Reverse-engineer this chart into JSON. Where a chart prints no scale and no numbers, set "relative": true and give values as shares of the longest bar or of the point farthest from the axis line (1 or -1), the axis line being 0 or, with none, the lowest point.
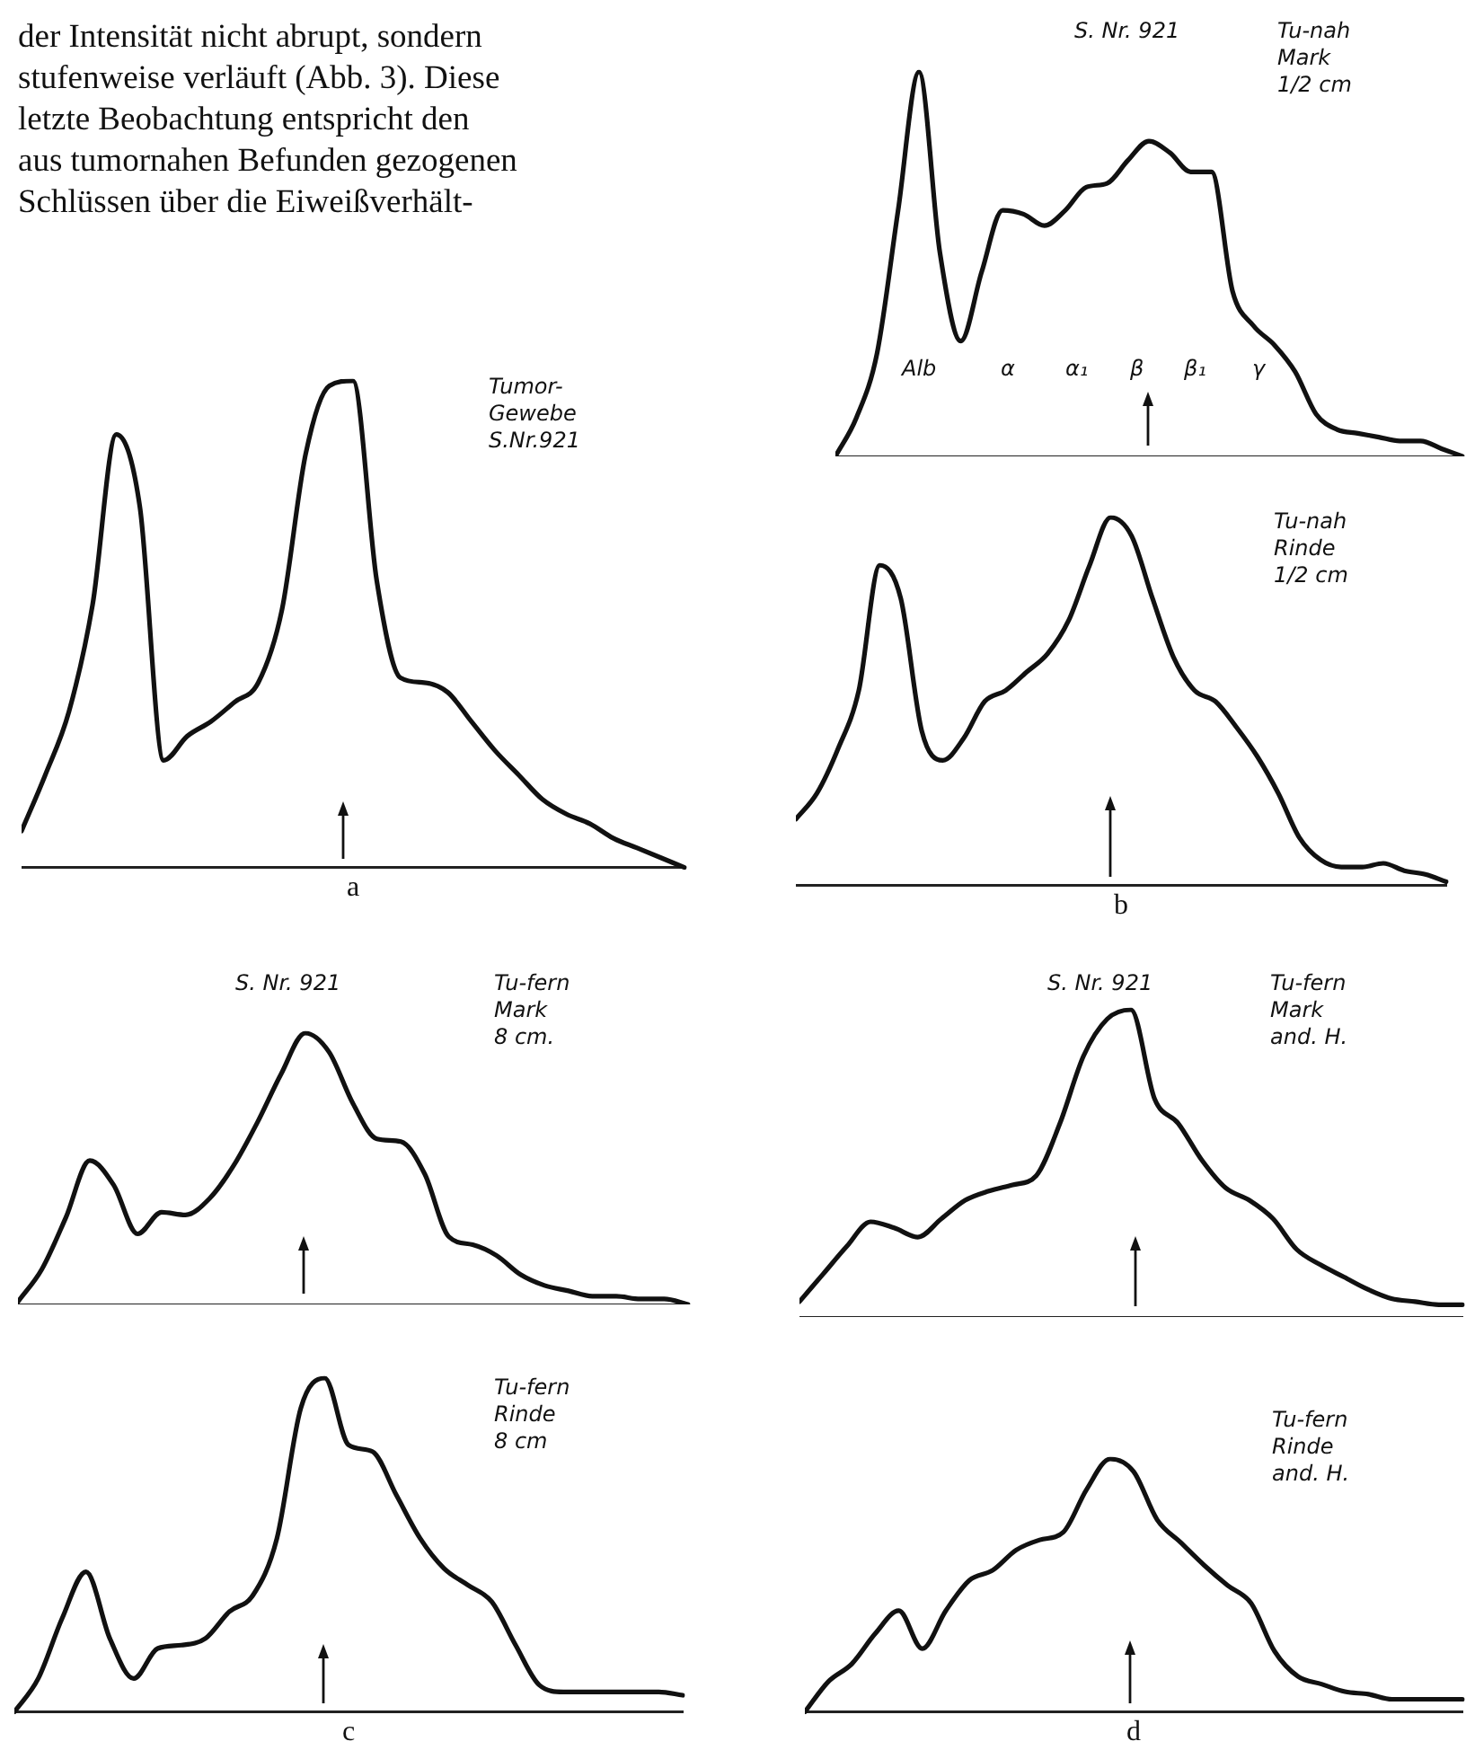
{
  "chart_data": [
    {
      "type": "other",
      "annotations": [
        "der Intensität nicht abrupt, sondern",
        "stufenweise verläuft (Abb. 3). Diese",
        "letzte Beobachtung entspricht den",
        "aus tumornahen Befunden gezogenen",
        "Schlüssen über die Eiweißverhält-"
      ]
    },
    {
      "type": "line",
      "relative": true,
      "tick_labels": false,
      "color": "#111111",
      "xlabel": "a",
      "annotations": [
        "Tumor-\nGewebe\nS.Nr.921"
      ],
      "categories": [
        null,
        null,
        null,
        null,
        null,
        null,
        null,
        null,
        null,
        null,
        null,
        null,
        null,
        null,
        null,
        null,
        null,
        null,
        null,
        null,
        null,
        null,
        null,
        null,
        null,
        null,
        null,
        null,
        null
      ],
      "values": [
        0.075,
        0.19,
        0.32,
        0.54,
        0.89,
        0.74,
        0.22,
        0.27,
        0.3,
        0.34,
        0.38,
        0.53,
        0.85,
        0.99,
        1,
        0.59,
        0.39,
        0.38,
        0.36,
        0.3,
        0.24,
        0.19,
        0.14,
        0.11,
        0.09,
        0.06,
        0.04,
        0.02,
        0
      ]
    },
    {
      "type": "line",
      "relative": true,
      "tick_labels": false,
      "color": "#111111",
      "annotations": [
        "S. Nr. 921",
        "Tu-nah\nMark\n1/2 cm",
        "Alb",
        "α",
        "α₁",
        "β",
        "β₁",
        "γ"
      ],
      "categories": [
        null,
        null,
        null,
        null,
        null,
        null,
        null,
        null,
        null,
        null,
        null,
        null,
        null,
        null,
        null,
        null,
        null,
        null,
        null,
        null,
        null,
        null,
        null,
        null,
        null,
        null,
        null,
        null,
        null,
        null,
        null
      ],
      "values": [
        0,
        0.1,
        0.27,
        0.64,
        1,
        0.53,
        0.3,
        0.48,
        0.64,
        0.63,
        0.6,
        0.64,
        0.7,
        0.71,
        0.77,
        0.82,
        0.79,
        0.74,
        0.74,
        0.43,
        0.34,
        0.29,
        0.22,
        0.11,
        0.07,
        0.06,
        0.05,
        0.04,
        0.04,
        0.02,
        0
      ]
    },
    {
      "type": "line",
      "relative": true,
      "tick_labels": false,
      "color": "#111111",
      "xlabel": "b",
      "annotations": [
        "Tu-nah\nRinde\n1/2 cm"
      ],
      "categories": [
        null,
        null,
        null,
        null,
        null,
        null,
        null,
        null,
        null,
        null,
        null,
        null,
        null,
        null,
        null,
        null,
        null,
        null,
        null,
        null,
        null,
        null,
        null,
        null,
        null,
        null,
        null,
        null,
        null,
        null,
        null,
        null
      ],
      "values": [
        0.18,
        0.25,
        0.37,
        0.53,
        0.87,
        0.78,
        0.42,
        0.34,
        0.4,
        0.5,
        0.53,
        0.58,
        0.63,
        0.72,
        0.87,
        1,
        0.95,
        0.78,
        0.62,
        0.53,
        0.5,
        0.43,
        0.35,
        0.25,
        0.13,
        0.07,
        0.05,
        0.05,
        0.06,
        0.04,
        0.03,
        0.01
      ]
    },
    {
      "type": "line",
      "relative": true,
      "tick_labels": false,
      "color": "#111111",
      "annotations": [
        "S. Nr. 921",
        "Tu-fern\nMark\n8 cm."
      ],
      "categories": [
        null,
        null,
        null,
        null,
        null,
        null,
        null,
        null,
        null,
        null,
        null,
        null,
        null,
        null,
        null,
        null,
        null,
        null,
        null,
        null,
        null,
        null,
        null,
        null,
        null,
        null,
        null,
        null,
        null
      ],
      "values": [
        0.01,
        0.13,
        0.32,
        0.53,
        0.44,
        0.26,
        0.34,
        0.33,
        0.39,
        0.51,
        0.67,
        0.85,
        1,
        0.93,
        0.74,
        0.61,
        0.6,
        0.48,
        0.25,
        0.22,
        0.18,
        0.11,
        0.07,
        0.05,
        0.03,
        0.03,
        0.02,
        0.02,
        0
      ]
    },
    {
      "type": "line",
      "relative": true,
      "tick_labels": false,
      "color": "#111111",
      "xlabel": "c",
      "annotations": [
        "Tu-fern\nRinde\n8 cm"
      ],
      "categories": [
        null,
        null,
        null,
        null,
        null,
        null,
        null,
        null,
        null,
        null,
        null,
        null,
        null,
        null,
        null,
        null,
        null,
        null,
        null,
        null,
        null,
        null,
        null,
        null,
        null,
        null,
        null,
        null,
        null
      ],
      "values": [
        0,
        0.1,
        0.28,
        0.42,
        0.22,
        0.1,
        0.19,
        0.2,
        0.22,
        0.3,
        0.35,
        0.52,
        0.91,
        1,
        0.8,
        0.78,
        0.65,
        0.52,
        0.43,
        0.38,
        0.33,
        0.2,
        0.08,
        0.06,
        0.06,
        0.06,
        0.06,
        0.06,
        0.05
      ]
    },
    {
      "type": "line",
      "relative": true,
      "tick_labels": false,
      "color": "#111111",
      "annotations": [
        "S. Nr. 921",
        "Tu-fern\nMark\nand. H."
      ],
      "categories": [
        null,
        null,
        null,
        null,
        null,
        null,
        null,
        null,
        null,
        null,
        null,
        null,
        null,
        null,
        null,
        null,
        null,
        null,
        null,
        null,
        null,
        null,
        null,
        null,
        null,
        null,
        null,
        null,
        null
      ],
      "values": [
        0.05,
        0.14,
        0.23,
        0.31,
        0.29,
        0.26,
        0.32,
        0.38,
        0.41,
        0.43,
        0.46,
        0.63,
        0.85,
        0.97,
        1,
        0.71,
        0.63,
        0.51,
        0.42,
        0.38,
        0.32,
        0.22,
        0.17,
        0.13,
        0.09,
        0.06,
        0.05,
        0.04,
        0.04
      ]
    },
    {
      "type": "line",
      "relative": true,
      "tick_labels": false,
      "color": "#111111",
      "xlabel": "d",
      "annotations": [
        "Tu-fern\nRinde\nand. H."
      ],
      "categories": [
        null,
        null,
        null,
        null,
        null,
        null,
        null,
        null,
        null,
        null,
        null,
        null,
        null,
        null,
        null,
        null,
        null,
        null,
        null,
        null,
        null,
        null,
        null,
        null,
        null,
        null,
        null,
        null,
        null
      ],
      "values": [
        0,
        0.12,
        0.19,
        0.31,
        0.4,
        0.25,
        0.4,
        0.52,
        0.56,
        0.64,
        0.68,
        0.71,
        0.88,
        1,
        0.95,
        0.76,
        0.67,
        0.58,
        0.5,
        0.43,
        0.24,
        0.14,
        0.11,
        0.08,
        0.07,
        0.05,
        0.05,
        0.05,
        0.05
      ]
    }
  ]
}
